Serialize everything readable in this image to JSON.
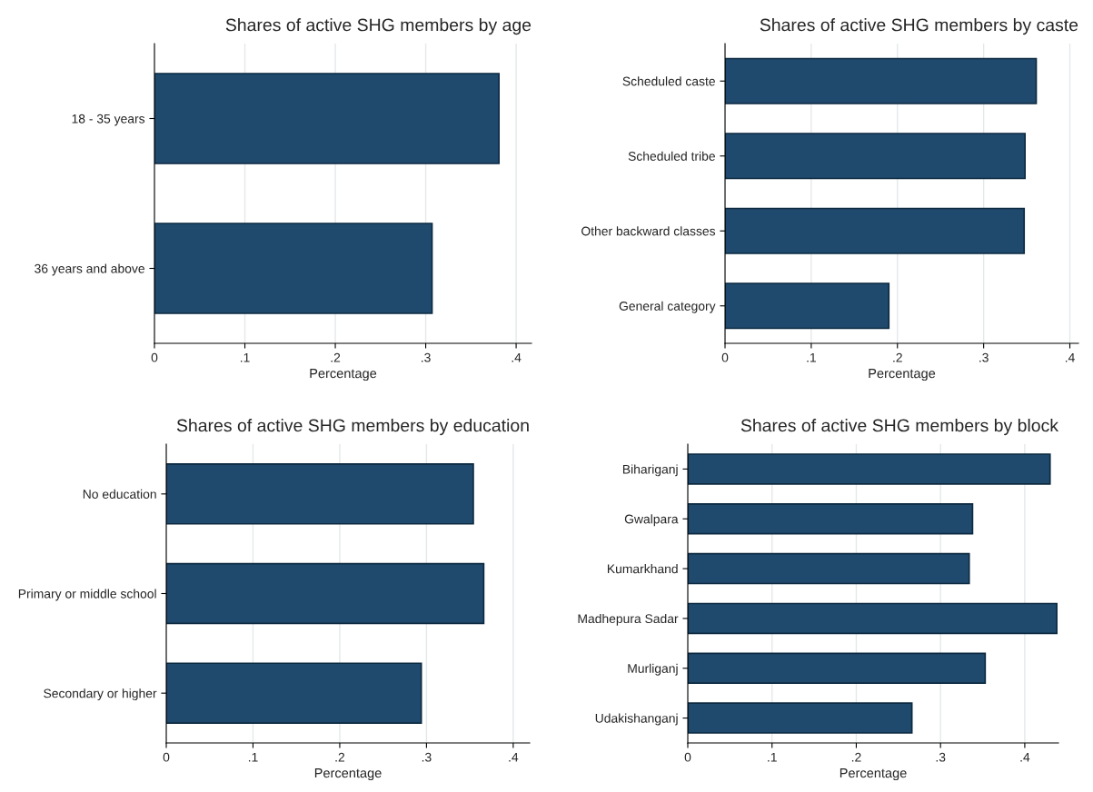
{
  "chart_data": [
    {
      "type": "bar",
      "orientation": "horizontal",
      "title": "Shares of active SHG members by age",
      "xlabel": "Percentage",
      "categories": [
        "18 - 35 years",
        "36 years and above"
      ],
      "values": [
        0.381,
        0.307
      ],
      "color": "#1f4a6e",
      "xlim": [
        0,
        0.417
      ],
      "xticks": [
        0,
        {
          "value": 0.1,
          "label": ".1"
        },
        {
          "value": 0.2,
          "label": ".2"
        },
        {
          "value": 0.3,
          "label": ".3"
        },
        {
          "value": 0.4,
          "label": ".4"
        }
      ],
      "grid": "x"
    },
    {
      "type": "bar",
      "orientation": "horizontal",
      "title": "Shares of active SHG members by caste",
      "xlabel": "Percentage",
      "categories": [
        "Scheduled caste",
        "Scheduled tribe",
        "Other backward classes",
        "General category"
      ],
      "values": [
        0.361,
        0.348,
        0.347,
        0.19
      ],
      "color": "#1f4a6e",
      "xlim": [
        0,
        0.41
      ],
      "xticks": [
        0,
        {
          "value": 0.1,
          "label": ".1"
        },
        {
          "value": 0.2,
          "label": ".2"
        },
        {
          "value": 0.3,
          "label": ".3"
        },
        {
          "value": 0.4,
          "label": ".4"
        }
      ],
      "grid": "x"
    },
    {
      "type": "bar",
      "orientation": "horizontal",
      "title": "Shares of active SHG members by education",
      "xlabel": "Percentage",
      "categories": [
        "No education",
        "Primary or middle school",
        "Secondary or higher"
      ],
      "values": [
        0.354,
        0.366,
        0.294
      ],
      "color": "#1f4a6e",
      "xlim": [
        0,
        0.419
      ],
      "xticks": [
        0,
        {
          "value": 0.1,
          "label": ".1"
        },
        {
          "value": 0.2,
          "label": ".2"
        },
        {
          "value": 0.3,
          "label": ".3"
        },
        {
          "value": 0.4,
          "label": ".4"
        }
      ],
      "grid": "x"
    },
    {
      "type": "bar",
      "orientation": "horizontal",
      "title": "Shares of active SHG members by block",
      "xlabel": "Percentage",
      "categories": [
        "Bihariganj",
        "Gwalpara",
        "Kumarkhand",
        "Madhepura Sadar",
        "Murliganj",
        "Udakishanganj"
      ],
      "values": [
        0.43,
        0.338,
        0.334,
        0.438,
        0.353,
        0.266
      ],
      "color": "#1f4a6e",
      "xlim": [
        0,
        0.44
      ],
      "xticks": [
        0,
        {
          "value": 0.1,
          "label": ".1"
        },
        {
          "value": 0.2,
          "label": ".2"
        },
        {
          "value": 0.3,
          "label": ".3"
        },
        {
          "value": 0.4,
          "label": ".4"
        }
      ],
      "grid": "x"
    }
  ]
}
